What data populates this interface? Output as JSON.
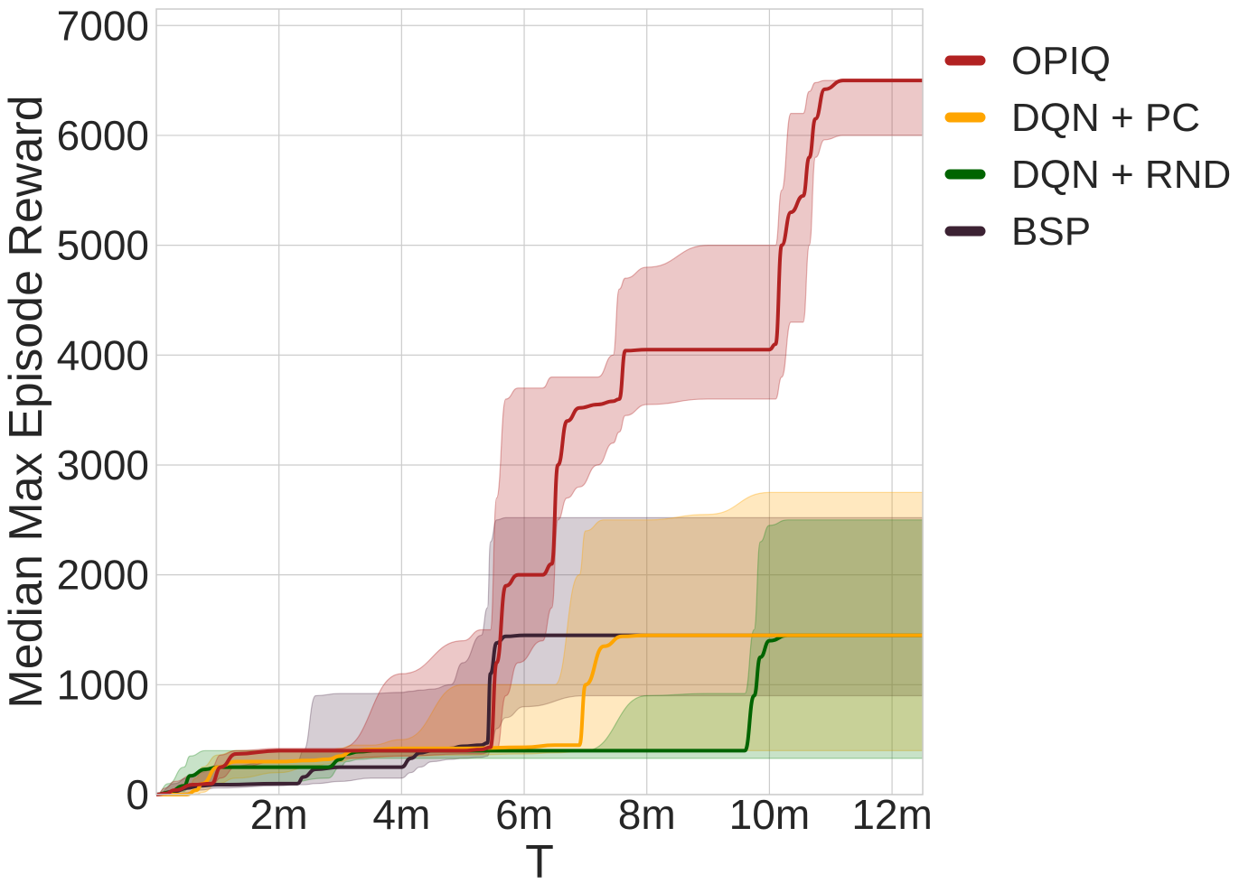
{
  "chart_data": {
    "type": "line",
    "title": "",
    "xlabel": "T",
    "ylabel": "Median Max Episode Reward",
    "xlim": [
      0,
      12.5
    ],
    "ylim": [
      0,
      7150
    ],
    "x_unit": "m",
    "xticks": [
      2,
      4,
      6,
      8,
      10,
      12
    ],
    "xtick_labels": [
      "2m",
      "4m",
      "6m",
      "8m",
      "10m",
      "12m"
    ],
    "yticks": [
      0,
      1000,
      2000,
      3000,
      4000,
      5000,
      6000,
      7000
    ],
    "ytick_labels": [
      "0",
      "1000",
      "2000",
      "3000",
      "4000",
      "5000",
      "6000",
      "7000"
    ],
    "grid": true,
    "legend_position": "outside-top-right",
    "series": [
      {
        "name": "OPIQ",
        "color": "#b22222",
        "fill_color": "#b22222",
        "x": [
          0,
          0.15,
          0.3,
          0.6,
          0.9,
          1.05,
          1.3,
          2.0,
          3.0,
          4.0,
          5.0,
          5.3,
          5.45,
          5.55,
          5.7,
          5.9,
          6.3,
          6.45,
          6.55,
          6.7,
          6.9,
          7.2,
          7.45,
          7.55,
          7.65,
          8.0,
          9.0,
          10.0,
          10.1,
          10.2,
          10.35,
          10.55,
          10.65,
          10.75,
          10.9,
          11.2,
          12.5
        ],
        "y": [
          0,
          10,
          40,
          90,
          100,
          250,
          370,
          400,
          400,
          400,
          400,
          410,
          430,
          1200,
          1900,
          2000,
          2000,
          2100,
          3000,
          3400,
          3520,
          3550,
          3580,
          3600,
          4040,
          4050,
          4050,
          4050,
          4100,
          5000,
          5300,
          5450,
          5800,
          6150,
          6420,
          6500,
          6500
        ],
        "lower": [
          0,
          0,
          20,
          60,
          80,
          150,
          250,
          300,
          330,
          350,
          370,
          370,
          390,
          400,
          900,
          1200,
          1400,
          1700,
          2500,
          2700,
          2800,
          3000,
          3200,
          3300,
          3450,
          3550,
          3600,
          3600,
          3600,
          3800,
          4300,
          4300,
          5000,
          5800,
          5960,
          6000,
          6000
        ],
        "upper": [
          0,
          60,
          120,
          180,
          250,
          360,
          400,
          420,
          420,
          1100,
          1400,
          1500,
          1500,
          2700,
          3600,
          3700,
          3700,
          3800,
          3800,
          3800,
          3800,
          3800,
          4000,
          4600,
          4700,
          4800,
          5000,
          5000,
          5000,
          5500,
          6200,
          6200,
          6400,
          6480,
          6500,
          6500,
          6500
        ]
      },
      {
        "name": "DQN + PC",
        "color": "#ffa500",
        "fill_color": "#ffa500",
        "x": [
          0,
          0.5,
          0.65,
          0.75,
          1.0,
          1.3,
          2.0,
          2.5,
          2.8,
          3.0,
          3.2,
          3.5,
          4.0,
          5.0,
          6.0,
          6.5,
          6.9,
          7.0,
          7.3,
          7.6,
          8.0,
          9.0,
          10.0,
          10.4,
          12.5
        ],
        "y": [
          0,
          0,
          40,
          100,
          250,
          300,
          300,
          310,
          320,
          350,
          400,
          410,
          420,
          420,
          430,
          450,
          450,
          1000,
          1350,
          1440,
          1450,
          1450,
          1450,
          1450,
          1450
        ],
        "lower": [
          0,
          0,
          0,
          20,
          100,
          150,
          200,
          250,
          280,
          300,
          330,
          340,
          350,
          360,
          370,
          380,
          390,
          400,
          400,
          400,
          400,
          400,
          400,
          400,
          400
        ],
        "upper": [
          0,
          50,
          150,
          250,
          360,
          400,
          400,
          400,
          400,
          420,
          450,
          450,
          500,
          1000,
          1000,
          1000,
          2000,
          2400,
          2500,
          2500,
          2500,
          2550,
          2750,
          2750,
          2750
        ]
      },
      {
        "name": "DQN + RND",
        "color": "#006400",
        "fill_color": "#228b22",
        "x": [
          0,
          0.2,
          0.45,
          0.55,
          0.8,
          1.0,
          2.0,
          2.8,
          3.0,
          3.1,
          3.3,
          3.6,
          4.0,
          5.0,
          6.0,
          7.0,
          8.0,
          9.0,
          9.6,
          9.75,
          9.85,
          10.0,
          10.3,
          10.6,
          12.5
        ],
        "y": [
          0,
          20,
          80,
          170,
          230,
          250,
          250,
          250,
          320,
          370,
          390,
          400,
          400,
          400,
          400,
          400,
          400,
          400,
          400,
          900,
          1250,
          1400,
          1450,
          1450,
          1450
        ],
        "lower": [
          0,
          0,
          30,
          80,
          100,
          100,
          100,
          150,
          250,
          300,
          320,
          330,
          330,
          330,
          330,
          330,
          330,
          330,
          330,
          330,
          330,
          330,
          330,
          330,
          330
        ],
        "upper": [
          0,
          100,
          250,
          350,
          400,
          400,
          400,
          400,
          400,
          400,
          400,
          400,
          400,
          400,
          400,
          400,
          900,
          920,
          920,
          1500,
          2300,
          2450,
          2500,
          2500,
          2500
        ]
      },
      {
        "name": "BSP",
        "color": "#3c2233",
        "fill_color": "#5a3d55",
        "x": [
          0,
          0.3,
          0.5,
          0.7,
          1.0,
          2.0,
          2.3,
          2.4,
          2.6,
          3.0,
          3.5,
          4.0,
          4.15,
          4.3,
          4.5,
          4.8,
          5.0,
          5.3,
          5.4,
          5.45,
          5.55,
          5.7,
          6.0,
          7.0,
          8.0,
          10.0,
          12.5
        ],
        "y": [
          0,
          30,
          60,
          80,
          90,
          100,
          100,
          160,
          230,
          250,
          250,
          250,
          330,
          380,
          400,
          420,
          440,
          450,
          470,
          1100,
          1380,
          1440,
          1450,
          1450,
          1450,
          1450,
          1450
        ],
        "lower": [
          0,
          0,
          20,
          40,
          60,
          80,
          90,
          90,
          100,
          120,
          150,
          150,
          200,
          250,
          300,
          320,
          330,
          340,
          350,
          400,
          600,
          700,
          800,
          900,
          900,
          900,
          900
        ],
        "upper": [
          0,
          100,
          150,
          200,
          250,
          300,
          300,
          400,
          900,
          920,
          920,
          930,
          940,
          950,
          960,
          1000,
          1200,
          1450,
          1700,
          2300,
          2500,
          2520,
          2520,
          2520,
          2520,
          2520,
          2520
        ]
      }
    ]
  }
}
